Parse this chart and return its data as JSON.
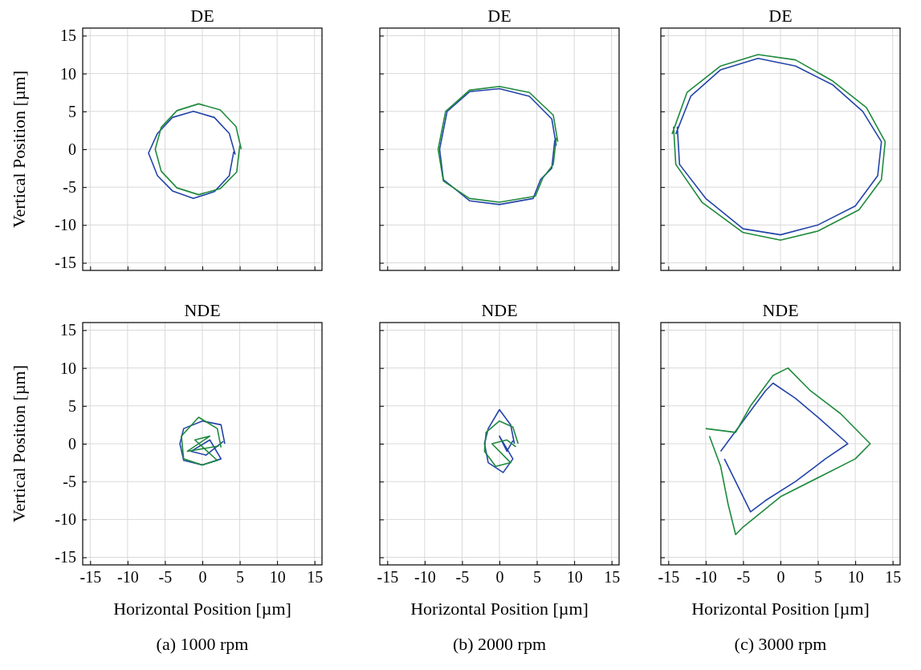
{
  "chart_data": [
    {
      "type": "line",
      "title": "DE",
      "ylabel": "Vertical Position [µm]",
      "xlim": [
        -16,
        16
      ],
      "ylim": [
        -16,
        16
      ],
      "xticks": [
        -15,
        -10,
        -5,
        0,
        5,
        10,
        15
      ],
      "yticks": [
        -15,
        -10,
        -5,
        0,
        5,
        10,
        15
      ],
      "grid": true,
      "tick_labels": "y",
      "series": [
        {
          "color": "#2344a8",
          "x": [
            4.4,
            3.6,
            1.6,
            -1.2,
            -4.0,
            -6.0,
            -7.2,
            -6.0,
            -4.0,
            -1.2,
            1.6,
            3.6,
            4.2
          ],
          "values": [
            -0.7,
            2.1,
            4.2,
            5.0,
            4.2,
            2.1,
            -0.5,
            -3.5,
            -5.5,
            -6.5,
            -5.6,
            -3.5,
            -0.3
          ]
        },
        {
          "color": "#1e8a3c",
          "x": [
            5.2,
            4.5,
            2.4,
            -0.5,
            -3.4,
            -5.5,
            -6.3,
            -5.5,
            -3.4,
            -0.5,
            2.4,
            4.6,
            5.0
          ],
          "values": [
            0,
            3,
            5.2,
            6.0,
            5.1,
            2.9,
            0,
            -2.9,
            -5.1,
            -6.0,
            -5.2,
            -3,
            0.5
          ]
        }
      ]
    },
    {
      "type": "line",
      "title": "DE",
      "xlim": [
        -16,
        16
      ],
      "ylim": [
        -16,
        16
      ],
      "xticks": [
        -15,
        -10,
        -5,
        0,
        5,
        10,
        15
      ],
      "yticks": [
        -15,
        -10,
        -5,
        0,
        5,
        10,
        15
      ],
      "grid": true,
      "tick_labels": false,
      "series": [
        {
          "color": "#2344a8",
          "x": [
            7.6,
            7,
            4,
            0,
            -4,
            -7,
            -8,
            -7.5,
            -4,
            0,
            4.5,
            5.5,
            7,
            7.4
          ],
          "values": [
            0.5,
            4,
            7,
            8,
            7.6,
            5,
            0,
            -4,
            -6.8,
            -7.3,
            -6.5,
            -4,
            -2.5,
            1.2
          ]
        },
        {
          "color": "#1e8a3c",
          "x": [
            7.8,
            7.2,
            4,
            0,
            -4,
            -7.2,
            -8.2,
            -7.5,
            -4,
            0,
            4.8,
            5.8,
            7.2,
            7.6
          ],
          "values": [
            1,
            4.5,
            7.5,
            8.3,
            7.8,
            5,
            0,
            -4.2,
            -6.5,
            -7,
            -6.2,
            -3.8,
            -2,
            1.5
          ]
        }
      ]
    },
    {
      "type": "line",
      "title": "DE",
      "xlim": [
        -16,
        16
      ],
      "ylim": [
        -16,
        16
      ],
      "xticks": [
        -15,
        -10,
        -5,
        0,
        5,
        10,
        15
      ],
      "yticks": [
        -15,
        -10,
        -5,
        0,
        5,
        10,
        15
      ],
      "grid": true,
      "tick_labels": false,
      "series": [
        {
          "color": "#2344a8",
          "x": [
            -14,
            -12,
            -8,
            -3,
            2,
            7,
            11,
            13.5,
            13,
            10,
            5,
            0,
            -5,
            -10,
            -13.5,
            -13.8
          ],
          "values": [
            2,
            7,
            10.5,
            12,
            11,
            8.5,
            5,
            1,
            -3.5,
            -7.5,
            -10,
            -11.3,
            -10.5,
            -6.5,
            -2,
            3
          ]
        },
        {
          "color": "#1e8a3c",
          "x": [
            -14.5,
            -12.5,
            -8,
            -3,
            2,
            7,
            11.5,
            14,
            13.5,
            10.5,
            5,
            0,
            -5,
            -10.5,
            -14,
            -14.3
          ],
          "values": [
            2,
            7.5,
            11,
            12.5,
            11.8,
            9,
            5.5,
            1,
            -4,
            -8,
            -10.8,
            -12,
            -11,
            -7,
            -2,
            3
          ]
        }
      ]
    },
    {
      "type": "line",
      "title": "NDE",
      "xlabel": "Horizontal Position [µm]",
      "ylabel": "Vertical Position [µm]",
      "xlim": [
        -16,
        16
      ],
      "ylim": [
        -16,
        16
      ],
      "xticks": [
        -15,
        -10,
        -5,
        0,
        5,
        10,
        15
      ],
      "yticks": [
        -15,
        -10,
        -5,
        0,
        5,
        10,
        15
      ],
      "grid": true,
      "annotations": [
        "(a) 1000 rpm"
      ],
      "series": [
        {
          "color": "#2344a8",
          "x": [
            3,
            2.5,
            0,
            -2.5,
            -3,
            -2.5,
            0,
            2.5,
            1,
            -1.5,
            0.5,
            2.8
          ],
          "values": [
            0,
            2.5,
            3,
            2,
            0,
            -2.2,
            -2.8,
            -2,
            0.5,
            -1,
            -1.5,
            0.3
          ]
        },
        {
          "color": "#1e8a3c",
          "x": [
            2.5,
            2,
            -0.5,
            -2.8,
            -2.5,
            0,
            2,
            -1,
            1,
            -2,
            2.2
          ],
          "values": [
            -0.5,
            2,
            3.5,
            1,
            -2,
            -2.8,
            -2.2,
            0.5,
            1,
            -1,
            -0.3
          ]
        }
      ]
    },
    {
      "type": "line",
      "title": "NDE",
      "xlabel": "Horizontal Position [µm]",
      "xlim": [
        -16,
        16
      ],
      "ylim": [
        -16,
        16
      ],
      "xticks": [
        -15,
        -10,
        -5,
        0,
        5,
        10,
        15
      ],
      "yticks": [
        -15,
        -10,
        -5,
        0,
        5,
        10,
        15
      ],
      "grid": true,
      "tick_labels": "x",
      "annotations": [
        "(b) 2000 rpm"
      ],
      "series": [
        {
          "color": "#2344a8",
          "x": [
            2,
            1.5,
            0,
            -1.5,
            -2,
            -1.5,
            0.5,
            1.8,
            0,
            1,
            1.8
          ],
          "values": [
            0,
            2.5,
            4.5,
            2,
            0,
            -2.5,
            -3.8,
            -2,
            1,
            -1,
            0.4
          ]
        },
        {
          "color": "#1e8a3c",
          "x": [
            2.5,
            1.8,
            0,
            -1.8,
            -2,
            -0.5,
            1.5,
            -1,
            1,
            2.2
          ],
          "values": [
            0,
            2.2,
            3,
            1.5,
            -1,
            -3,
            -2.5,
            0,
            0.5,
            -0.4
          ]
        }
      ]
    },
    {
      "type": "line",
      "title": "NDE",
      "xlabel": "Horizontal Position [µm]",
      "xlim": [
        -16,
        16
      ],
      "ylim": [
        -16,
        16
      ],
      "xticks": [
        -15,
        -10,
        -5,
        0,
        5,
        10,
        15
      ],
      "yticks": [
        -15,
        -10,
        -5,
        0,
        5,
        10,
        15
      ],
      "grid": true,
      "tick_labels": "x",
      "annotations": [
        "(c) 3000 rpm"
      ],
      "series": [
        {
          "color": "#2344a8",
          "x": [
            -8,
            -5,
            -2,
            -1,
            2,
            5,
            9,
            6,
            2,
            -2,
            -4,
            -6,
            -7.5
          ],
          "values": [
            -1,
            3,
            7,
            8,
            6,
            3.5,
            0,
            -2,
            -5,
            -7.5,
            -9,
            -5,
            -2
          ]
        },
        {
          "color": "#1e8a3c",
          "x": [
            -10,
            -6,
            -4,
            -1,
            1,
            4,
            8,
            12,
            10,
            6,
            0,
            -5,
            -6,
            -7,
            -8,
            -9.5
          ],
          "values": [
            2,
            1.5,
            5,
            9,
            10,
            7,
            4,
            0,
            -2,
            -4,
            -7,
            -11,
            -12,
            -8,
            -3,
            1
          ]
        }
      ]
    }
  ]
}
